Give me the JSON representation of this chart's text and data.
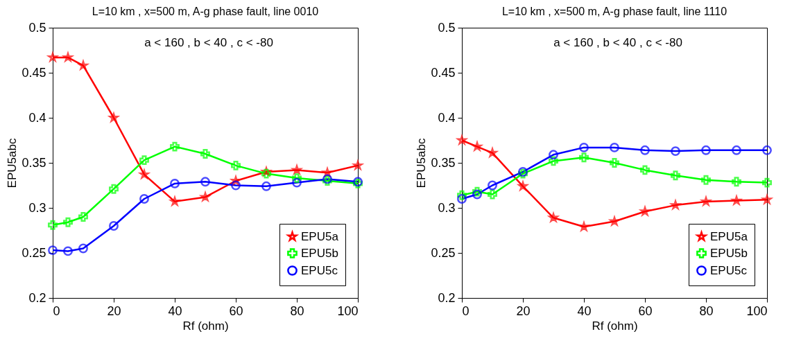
{
  "chart_data": [
    {
      "type": "line",
      "title": "L=10 km , x=500 m, A-g phase fault, line 0010",
      "xlabel": "Rf (ohm)",
      "ylabel": "EPU5abc",
      "annotations": [
        "a < 160 , b < 40 , c < -80"
      ],
      "x": [
        0,
        5,
        10,
        20,
        30,
        40,
        50,
        60,
        70,
        80,
        90,
        100
      ],
      "xlim": [
        0,
        100
      ],
      "xticks": [
        0,
        20,
        40,
        60,
        80,
        100
      ],
      "ylim": [
        0.2,
        0.5
      ],
      "yticks": [
        0.2,
        0.25,
        0.3,
        0.35,
        0.4,
        0.45,
        0.5
      ],
      "grid": false,
      "legend": "bottom right",
      "series": [
        {
          "name": "EPU5a",
          "color": "#ff0000",
          "marker": "star",
          "values": [
            0.467,
            0.467,
            0.458,
            0.4,
            0.337,
            0.307,
            0.312,
            0.33,
            0.34,
            0.342,
            0.339,
            0.347
          ]
        },
        {
          "name": "EPU5b",
          "color": "#00ff00",
          "marker": "cross",
          "values": [
            0.281,
            0.284,
            0.29,
            0.321,
            0.353,
            0.368,
            0.36,
            0.347,
            0.338,
            0.333,
            0.33,
            0.327
          ]
        },
        {
          "name": "EPU5c",
          "color": "#0000ff",
          "marker": "circle",
          "values": [
            0.253,
            0.252,
            0.255,
            0.28,
            0.31,
            0.327,
            0.329,
            0.325,
            0.324,
            0.328,
            0.332,
            0.329
          ]
        }
      ]
    },
    {
      "type": "line",
      "title": "L=10 km , x=500 m, A-g phase fault, line 1110",
      "xlabel": "Rf (ohm)",
      "ylabel": "EPU5abc",
      "annotations": [
        "a < 160 , b < 40 , c < -80"
      ],
      "x": [
        0,
        5,
        10,
        20,
        30,
        40,
        50,
        60,
        70,
        80,
        90,
        100
      ],
      "xlim": [
        0,
        100
      ],
      "xticks": [
        0,
        20,
        40,
        60,
        80,
        100
      ],
      "ylim": [
        0.2,
        0.5
      ],
      "yticks": [
        0.2,
        0.25,
        0.3,
        0.35,
        0.4,
        0.45,
        0.5
      ],
      "grid": false,
      "legend": "bottom right",
      "series": [
        {
          "name": "EPU5a",
          "color": "#ff0000",
          "marker": "star",
          "values": [
            0.375,
            0.368,
            0.361,
            0.324,
            0.289,
            0.279,
            0.285,
            0.296,
            0.303,
            0.307,
            0.308,
            0.309
          ]
        },
        {
          "name": "EPU5b",
          "color": "#00ff00",
          "marker": "cross",
          "values": [
            0.314,
            0.318,
            0.315,
            0.338,
            0.352,
            0.356,
            0.35,
            0.342,
            0.336,
            0.331,
            0.329,
            0.328
          ]
        },
        {
          "name": "EPU5c",
          "color": "#0000ff",
          "marker": "circle",
          "values": [
            0.31,
            0.315,
            0.325,
            0.34,
            0.359,
            0.367,
            0.367,
            0.364,
            0.363,
            0.364,
            0.364,
            0.364
          ]
        }
      ]
    }
  ]
}
